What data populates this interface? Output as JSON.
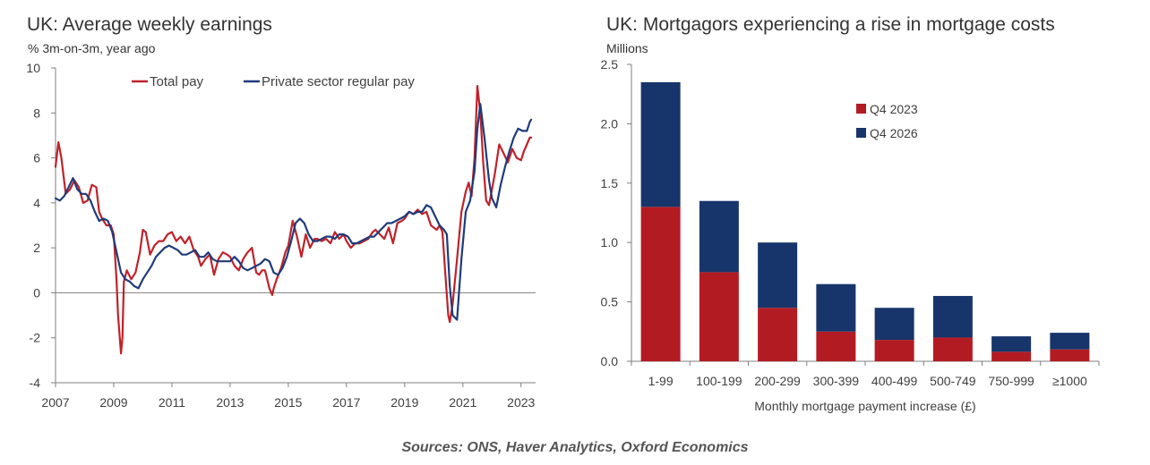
{
  "left_chart": {
    "title": "UK: Average weekly earnings",
    "subtitle": "% 3m-on-3m, year ago"
  },
  "right_chart": {
    "title": "UK: Mortgagors experiencing a rise in mortgage costs",
    "subtitle": "Millions"
  },
  "source": "Sources: ONS, Haver Analytics, Oxford Economics",
  "colors": {
    "total_pay": "#c0222a",
    "private_sector": "#1f3b7a",
    "q4_2023": "#b31b23",
    "q4_2026": "#17356b"
  },
  "chart_data": [
    {
      "type": "line",
      "title": "UK: Average weekly earnings",
      "ylabel": "% 3m-on-3m, year ago",
      "xlim": [
        2007,
        2023.5
      ],
      "ylim": [
        -4,
        10
      ],
      "xticks": [
        "2007",
        "2009",
        "2011",
        "2013",
        "2015",
        "2017",
        "2019",
        "2021",
        "2023"
      ],
      "yticks": [
        "-4",
        "-2",
        "0",
        "2",
        "4",
        "6",
        "8",
        "10"
      ],
      "legend": "top",
      "series": [
        {
          "name": "Total pay",
          "color": "#c0222a",
          "x": [
            2007.0,
            2007.1,
            2007.2,
            2007.35,
            2007.5,
            2007.65,
            2007.8,
            2007.95,
            2008.1,
            2008.25,
            2008.4,
            2008.5,
            2008.6,
            2008.75,
            2008.9,
            2009.0,
            2009.1,
            2009.15,
            2009.25,
            2009.3,
            2009.35,
            2009.45,
            2009.6,
            2009.75,
            2009.9,
            2010.0,
            2010.1,
            2010.25,
            2010.4,
            2010.55,
            2010.7,
            2010.85,
            2011.0,
            2011.15,
            2011.3,
            2011.45,
            2011.6,
            2011.75,
            2011.9,
            2012.0,
            2012.15,
            2012.3,
            2012.45,
            2012.6,
            2012.75,
            2012.9,
            2013.0,
            2013.15,
            2013.3,
            2013.45,
            2013.6,
            2013.75,
            2013.9,
            2014.0,
            2014.1,
            2014.2,
            2014.35,
            2014.45,
            2014.5,
            2014.6,
            2014.75,
            2014.9,
            2015.0,
            2015.15,
            2015.3,
            2015.45,
            2015.6,
            2015.75,
            2015.9,
            2016.0,
            2016.15,
            2016.3,
            2016.45,
            2016.6,
            2016.75,
            2016.9,
            2017.0,
            2017.15,
            2017.3,
            2017.45,
            2017.6,
            2017.75,
            2017.9,
            2018.0,
            2018.15,
            2018.3,
            2018.45,
            2018.6,
            2018.75,
            2018.9,
            2019.0,
            2019.15,
            2019.3,
            2019.45,
            2019.6,
            2019.75,
            2019.9,
            2020.0,
            2020.1,
            2020.2,
            2020.3,
            2020.4,
            2020.5,
            2020.55,
            2020.65,
            2020.8,
            2020.95,
            2021.1,
            2021.2,
            2021.3,
            2021.4,
            2021.5,
            2021.6,
            2021.7,
            2021.8,
            2021.9,
            2022.0,
            2022.1,
            2022.25,
            2022.4,
            2022.55,
            2022.7,
            2022.85,
            2023.0,
            2023.1,
            2023.2,
            2023.3,
            2023.35
          ],
          "y": [
            5.6,
            6.7,
            6.0,
            4.4,
            4.6,
            5.0,
            4.7,
            4.0,
            4.1,
            4.8,
            4.7,
            3.6,
            3.3,
            3.0,
            3.0,
            2.6,
            0.5,
            -1.0,
            -2.7,
            -2.0,
            0.5,
            1.0,
            0.6,
            0.9,
            1.8,
            2.8,
            2.7,
            1.7,
            2.1,
            2.3,
            2.3,
            2.6,
            2.7,
            2.3,
            2.5,
            2.2,
            2.5,
            1.9,
            1.6,
            1.2,
            1.5,
            1.7,
            0.8,
            1.5,
            1.8,
            1.7,
            1.6,
            1.2,
            1.0,
            1.5,
            1.8,
            2.0,
            0.9,
            0.8,
            1.0,
            1.0,
            0.2,
            -0.1,
            0.2,
            0.6,
            1.1,
            1.8,
            2.1,
            3.2,
            2.5,
            1.6,
            2.6,
            2.0,
            2.4,
            2.4,
            2.3,
            2.4,
            2.2,
            2.7,
            2.4,
            2.6,
            2.3,
            2.0,
            2.2,
            2.2,
            2.3,
            2.4,
            2.7,
            2.8,
            2.6,
            2.4,
            2.9,
            2.2,
            3.1,
            3.2,
            3.3,
            3.6,
            3.5,
            3.7,
            3.5,
            3.6,
            3.0,
            2.9,
            2.8,
            3.0,
            2.7,
            0.8,
            -1.0,
            -1.3,
            -0.5,
            1.5,
            3.6,
            4.5,
            4.9,
            4.3,
            6.0,
            9.2,
            8.0,
            5.8,
            4.1,
            3.9,
            4.6,
            5.3,
            6.6,
            6.2,
            5.8,
            6.4,
            6.0,
            5.9,
            6.3,
            6.6,
            6.9,
            6.9
          ]
        },
        {
          "name": "Private sector regular pay",
          "color": "#1f3b7a",
          "x": [
            2007.0,
            2007.15,
            2007.3,
            2007.45,
            2007.6,
            2007.75,
            2007.9,
            2008.05,
            2008.2,
            2008.35,
            2008.5,
            2008.65,
            2008.8,
            2008.95,
            2009.1,
            2009.25,
            2009.4,
            2009.55,
            2009.7,
            2009.85,
            2010.0,
            2010.15,
            2010.3,
            2010.45,
            2010.6,
            2010.75,
            2010.9,
            2011.05,
            2011.2,
            2011.35,
            2011.5,
            2011.65,
            2011.8,
            2011.95,
            2012.1,
            2012.25,
            2012.4,
            2012.55,
            2012.7,
            2012.85,
            2013.0,
            2013.15,
            2013.3,
            2013.45,
            2013.6,
            2013.75,
            2013.9,
            2014.05,
            2014.2,
            2014.35,
            2014.5,
            2014.65,
            2014.8,
            2014.95,
            2015.1,
            2015.25,
            2015.4,
            2015.55,
            2015.7,
            2015.85,
            2016.0,
            2016.15,
            2016.3,
            2016.45,
            2016.6,
            2016.75,
            2016.9,
            2017.05,
            2017.2,
            2017.35,
            2017.5,
            2017.65,
            2017.8,
            2017.95,
            2018.1,
            2018.25,
            2018.4,
            2018.55,
            2018.7,
            2018.85,
            2019.0,
            2019.15,
            2019.3,
            2019.45,
            2019.6,
            2019.75,
            2019.9,
            2020.05,
            2020.2,
            2020.35,
            2020.45,
            2020.55,
            2020.65,
            2020.8,
            2020.95,
            2021.1,
            2021.25,
            2021.4,
            2021.5,
            2021.6,
            2021.75,
            2021.9,
            2022.0,
            2022.15,
            2022.3,
            2022.45,
            2022.6,
            2022.75,
            2022.9,
            2023.05,
            2023.2,
            2023.3,
            2023.35
          ],
          "y": [
            4.2,
            4.1,
            4.3,
            4.7,
            5.1,
            4.6,
            4.4,
            4.4,
            4.1,
            3.6,
            3.2,
            3.3,
            3.2,
            2.7,
            1.8,
            0.9,
            0.6,
            0.5,
            0.3,
            0.2,
            0.6,
            0.9,
            1.2,
            1.6,
            1.8,
            2.0,
            2.1,
            2.0,
            1.9,
            1.7,
            1.7,
            1.8,
            1.9,
            1.6,
            1.6,
            1.8,
            1.5,
            1.4,
            1.4,
            1.4,
            1.4,
            1.6,
            1.4,
            1.1,
            1.0,
            1.1,
            1.2,
            1.3,
            1.5,
            1.4,
            0.9,
            0.8,
            1.1,
            1.6,
            2.3,
            3.1,
            3.3,
            3.1,
            2.6,
            2.3,
            2.3,
            2.4,
            2.5,
            2.5,
            2.4,
            2.6,
            2.6,
            2.5,
            2.2,
            2.2,
            2.3,
            2.4,
            2.5,
            2.5,
            2.7,
            2.9,
            3.1,
            3.1,
            3.2,
            3.3,
            3.4,
            3.6,
            3.5,
            3.6,
            3.6,
            3.9,
            3.8,
            3.4,
            3.0,
            2.8,
            2.6,
            0.3,
            -1.0,
            -1.2,
            1.5,
            3.6,
            4.1,
            5.4,
            7.3,
            8.4,
            6.8,
            5.0,
            4.2,
            3.8,
            4.8,
            5.6,
            6.3,
            6.9,
            7.3,
            7.2,
            7.2,
            7.6,
            7.7
          ]
        }
      ]
    },
    {
      "type": "bar",
      "title": "UK: Mortgagors experiencing a rise in mortgage costs",
      "ylabel": "Millions",
      "xlabel": "Monthly mortgage payment increase (£)",
      "categories": [
        "1-99",
        "100-199",
        "200-299",
        "300-399",
        "400-499",
        "500-749",
        "750-999",
        "≥1000"
      ],
      "ylim": [
        0,
        2.5
      ],
      "yticks": [
        "0.0",
        "0.5",
        "1.0",
        "1.5",
        "2.0",
        "2.5"
      ],
      "stacked": true,
      "legend": "top-right",
      "series": [
        {
          "name": "Q4 2023",
          "color": "#b31b23",
          "values": [
            1.3,
            0.75,
            0.45,
            0.25,
            0.18,
            0.2,
            0.08,
            0.1
          ]
        },
        {
          "name": "Q4 2026",
          "color": "#17356b",
          "values": [
            1.05,
            0.6,
            0.55,
            0.4,
            0.27,
            0.35,
            0.13,
            0.14
          ]
        }
      ]
    }
  ]
}
